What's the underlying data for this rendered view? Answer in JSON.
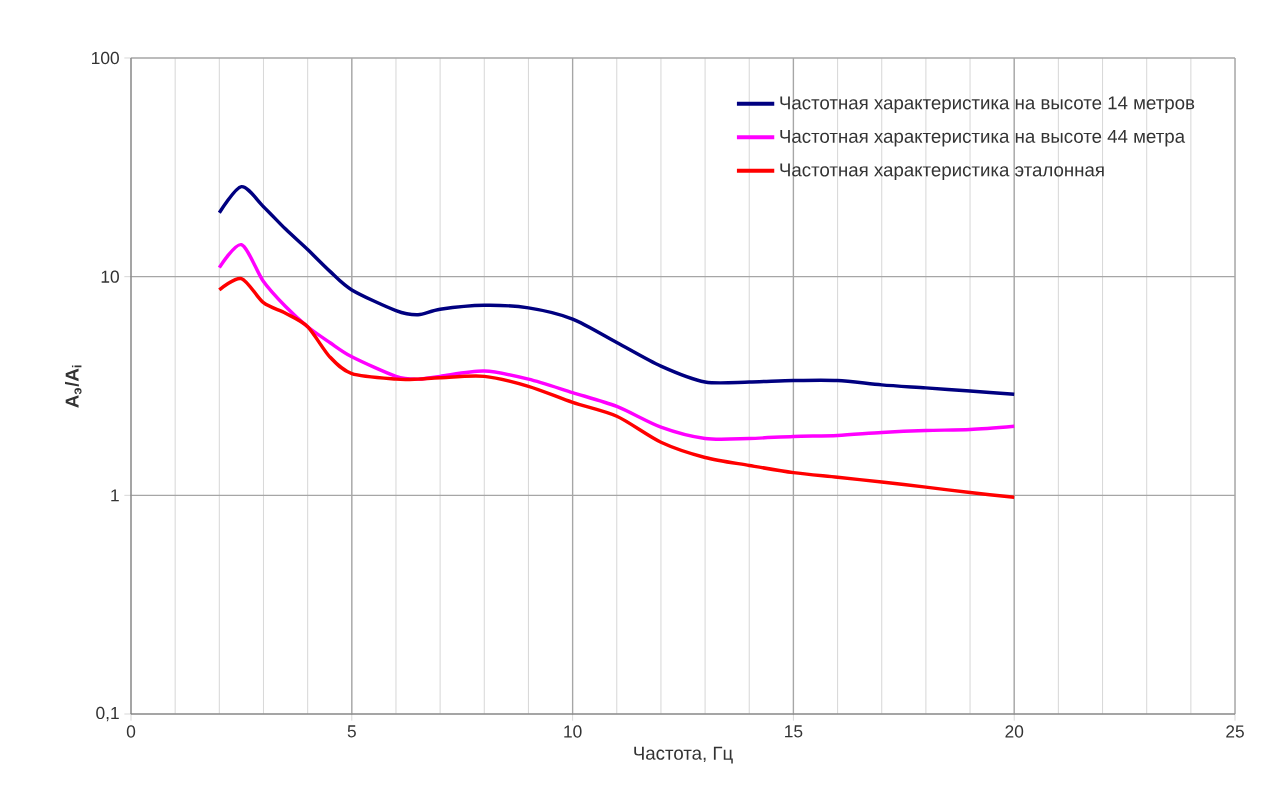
{
  "chart_data": {
    "type": "line",
    "xlabel": "Частота, Гц",
    "ylabel": "A$_{э}$/A$_{i}$",
    "log": "y",
    "grid": true,
    "legend": "top right",
    "xlim": [
      0,
      25
    ],
    "xticks": [
      0,
      5,
      10,
      15,
      20,
      25
    ],
    "ylim": [
      0.1,
      100
    ],
    "yticks": [
      {
        "value": 0.1,
        "label": "0,1"
      },
      1,
      10,
      100
    ],
    "x": [
      2,
      2.5,
      3,
      3.5,
      4,
      4.5,
      5,
      6,
      6.5,
      7,
      8,
      9,
      10,
      11,
      12,
      13,
      14,
      15,
      16,
      17,
      18,
      19,
      20
    ],
    "series": [
      {
        "name": "Частотная характеристика на высоте 14 метров",
        "color": "#000080",
        "values": [
          19.6,
          25.8,
          20.9,
          16.5,
          13.3,
          10.6,
          8.7,
          7.0,
          6.7,
          7.1,
          7.4,
          7.2,
          6.4,
          5.0,
          3.9,
          3.3,
          3.3,
          3.35,
          3.35,
          3.2,
          3.1,
          3.0,
          2.9
        ]
      },
      {
        "name": "Частотная характеристика на высоте 44 метра",
        "color": "#ff00ff",
        "values": [
          11.0,
          14.0,
          9.5,
          7.3,
          5.9,
          5.0,
          4.3,
          3.5,
          3.4,
          3.5,
          3.7,
          3.4,
          2.95,
          2.55,
          2.05,
          1.82,
          1.82,
          1.86,
          1.88,
          1.94,
          1.98,
          2.0,
          2.07
        ]
      },
      {
        "name": "Частотная характеристика эталонная",
        "color": "#ff0000",
        "values": [
          8.7,
          9.8,
          7.6,
          6.8,
          5.9,
          4.3,
          3.6,
          3.4,
          3.4,
          3.45,
          3.5,
          3.15,
          2.66,
          2.3,
          1.75,
          1.49,
          1.37,
          1.27,
          1.21,
          1.15,
          1.09,
          1.03,
          0.98
        ]
      }
    ]
  }
}
